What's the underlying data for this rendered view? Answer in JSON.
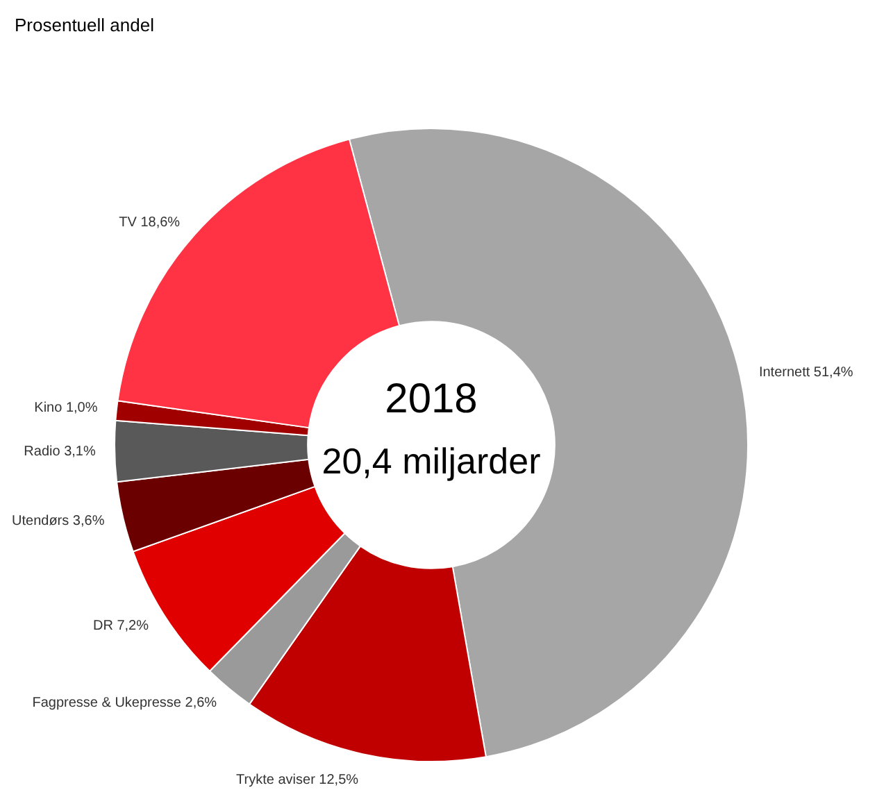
{
  "chart_data": {
    "type": "donut",
    "title": "Prosentuell andel",
    "categories": [
      "Internett",
      "Trykte aviser",
      "Fagpresse & Ukepresse",
      "DR",
      "Utendørs",
      "Radio",
      "Kino",
      "TV"
    ],
    "values": [
      51.4,
      12.5,
      2.6,
      7.2,
      3.6,
      3.1,
      1.0,
      18.6
    ],
    "value_labels": [
      "51,4%",
      "12,5%",
      "2,6%",
      "7,2%",
      "3,6%",
      "3,1%",
      "1,0%",
      "18,6%"
    ],
    "colors": [
      "#a6a6a6",
      "#c00000",
      "#9a9a9a",
      "#e00000",
      "#6b0000",
      "#595959",
      "#a00000",
      "#ff3344"
    ],
    "annotations": [
      "2018",
      "20,4 miljarder"
    ]
  }
}
